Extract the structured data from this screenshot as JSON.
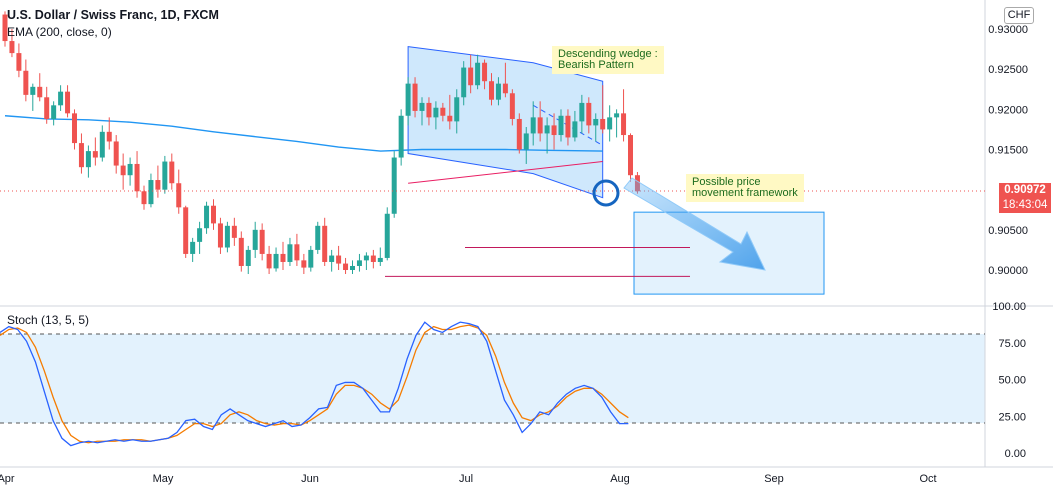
{
  "header": {
    "title": "U.S. Dollar / Swiss Franc, 1D, FXCM",
    "ema_label": "EMA (200, close, 0)",
    "currency_badge": "CHF"
  },
  "price_axis": {
    "ticks": [
      "0.93000",
      "0.92500",
      "0.92000",
      "0.91500",
      "0.90500",
      "0.90000"
    ],
    "current_price": "0.90972",
    "countdown": "18:43:04"
  },
  "stoch_axis": {
    "ticks": [
      "100.00",
      "75.00",
      "50.00",
      "25.00",
      "0.00"
    ],
    "label": "Stoch (13, 5, 5)"
  },
  "time_axis": {
    "ticks": [
      "Apr",
      "May",
      "Jun",
      "Jul",
      "Aug",
      "Sep",
      "Oct"
    ]
  },
  "annotations": {
    "wedge_note": "Descending wedge :\nBearish Pattern",
    "framework_note": "Possible price\nmovement framework"
  },
  "colors": {
    "up": "#26a69a",
    "down": "#ef5350",
    "ema": "#2196f3",
    "stoch_k": "#2962ff",
    "stoch_d": "#f57c00",
    "wedge_fill": "#bbdefb",
    "wedge_edge": "#2962ff",
    "support": "#c2185b"
  },
  "chart_data": {
    "type": "candlestick",
    "symbol": "USDCHF",
    "interval": "1D",
    "y_range": [
      0.8955,
      0.9325
    ],
    "ohlc": [
      [
        0.9318,
        0.9322,
        0.9278,
        0.9285
      ],
      [
        0.9285,
        0.93,
        0.9265,
        0.927
      ],
      [
        0.927,
        0.9282,
        0.924,
        0.9248
      ],
      [
        0.9248,
        0.9262,
        0.921,
        0.9218
      ],
      [
        0.9218,
        0.9232,
        0.9198,
        0.9228
      ],
      [
        0.9228,
        0.9245,
        0.921,
        0.9215
      ],
      [
        0.9215,
        0.9228,
        0.9182,
        0.9188
      ],
      [
        0.9188,
        0.921,
        0.918,
        0.9205
      ],
      [
        0.9205,
        0.923,
        0.9198,
        0.9222
      ],
      [
        0.9222,
        0.923,
        0.919,
        0.9195
      ],
      [
        0.9195,
        0.92,
        0.915,
        0.9158
      ],
      [
        0.9158,
        0.917,
        0.912,
        0.9128
      ],
      [
        0.9128,
        0.9155,
        0.9115,
        0.9148
      ],
      [
        0.9148,
        0.9165,
        0.913,
        0.914
      ],
      [
        0.914,
        0.918,
        0.9135,
        0.9172
      ],
      [
        0.9172,
        0.919,
        0.915,
        0.916
      ],
      [
        0.916,
        0.9168,
        0.912,
        0.913
      ],
      [
        0.913,
        0.9145,
        0.91,
        0.9118
      ],
      [
        0.9118,
        0.914,
        0.9105,
        0.9132
      ],
      [
        0.9132,
        0.9148,
        0.909,
        0.9098
      ],
      [
        0.9098,
        0.9105,
        0.9075,
        0.9082
      ],
      [
        0.9082,
        0.912,
        0.9078,
        0.9112
      ],
      [
        0.9112,
        0.913,
        0.909,
        0.91
      ],
      [
        0.91,
        0.9142,
        0.9095,
        0.9135
      ],
      [
        0.9135,
        0.9145,
        0.91,
        0.9108
      ],
      [
        0.9108,
        0.9125,
        0.907,
        0.9078
      ],
      [
        0.9078,
        0.908,
        0.9015,
        0.902
      ],
      [
        0.902,
        0.904,
        0.901,
        0.9035
      ],
      [
        0.9035,
        0.906,
        0.902,
        0.9052
      ],
      [
        0.9052,
        0.9085,
        0.9045,
        0.908
      ],
      [
        0.908,
        0.9088,
        0.905,
        0.9058
      ],
      [
        0.9058,
        0.9065,
        0.902,
        0.9028
      ],
      [
        0.9028,
        0.906,
        0.9022,
        0.9055
      ],
      [
        0.9055,
        0.9065,
        0.903,
        0.904
      ],
      [
        0.904,
        0.9048,
        0.8998,
        0.9005
      ],
      [
        0.9005,
        0.903,
        0.8995,
        0.9025
      ],
      [
        0.9025,
        0.906,
        0.9015,
        0.905
      ],
      [
        0.905,
        0.9058,
        0.9012,
        0.902
      ],
      [
        0.902,
        0.903,
        0.8995,
        0.9002
      ],
      [
        0.9002,
        0.9028,
        0.8998,
        0.902
      ],
      [
        0.902,
        0.9035,
        0.9,
        0.901
      ],
      [
        0.901,
        0.904,
        0.9005,
        0.9032
      ],
      [
        0.9032,
        0.9045,
        0.9005,
        0.9012
      ],
      [
        0.9012,
        0.902,
        0.8995,
        0.9003
      ],
      [
        0.9003,
        0.903,
        0.8998,
        0.9025
      ],
      [
        0.9025,
        0.906,
        0.902,
        0.9055
      ],
      [
        0.9055,
        0.9065,
        0.9005,
        0.901
      ],
      [
        0.901,
        0.9025,
        0.8998,
        0.9018
      ],
      [
        0.9018,
        0.903,
        0.9,
        0.9008
      ],
      [
        0.9008,
        0.9015,
        0.8995,
        0.9
      ],
      [
        0.9,
        0.9012,
        0.8995,
        0.9005
      ],
      [
        0.9005,
        0.902,
        0.8998,
        0.9012
      ],
      [
        0.9012,
        0.9022,
        0.9,
        0.9018
      ],
      [
        0.9018,
        0.9025,
        0.9002,
        0.901
      ],
      [
        0.901,
        0.9028,
        0.9005,
        0.9015
      ],
      [
        0.9015,
        0.9078,
        0.9012,
        0.907
      ],
      [
        0.907,
        0.9148,
        0.9065,
        0.914
      ],
      [
        0.914,
        0.92,
        0.913,
        0.9192
      ],
      [
        0.9192,
        0.924,
        0.918,
        0.9232
      ],
      [
        0.9232,
        0.924,
        0.919,
        0.9198
      ],
      [
        0.9198,
        0.9215,
        0.918,
        0.9208
      ],
      [
        0.9208,
        0.9215,
        0.918,
        0.919
      ],
      [
        0.919,
        0.921,
        0.9175,
        0.9202
      ],
      [
        0.9202,
        0.9208,
        0.9185,
        0.9192
      ],
      [
        0.9192,
        0.9218,
        0.9175,
        0.9185
      ],
      [
        0.9185,
        0.9225,
        0.917,
        0.9215
      ],
      [
        0.9215,
        0.926,
        0.9205,
        0.9252
      ],
      [
        0.9252,
        0.9268,
        0.922,
        0.923
      ],
      [
        0.923,
        0.9268,
        0.9225,
        0.9258
      ],
      [
        0.9258,
        0.9262,
        0.9225,
        0.9235
      ],
      [
        0.9235,
        0.9245,
        0.9205,
        0.9212
      ],
      [
        0.9212,
        0.924,
        0.9205,
        0.9232
      ],
      [
        0.9232,
        0.9258,
        0.9215,
        0.922
      ],
      [
        0.922,
        0.9225,
        0.918,
        0.9188
      ],
      [
        0.9188,
        0.9195,
        0.9145,
        0.915
      ],
      [
        0.915,
        0.9178,
        0.9132,
        0.917
      ],
      [
        0.917,
        0.921,
        0.9155,
        0.919
      ],
      [
        0.919,
        0.921,
        0.916,
        0.917
      ],
      [
        0.917,
        0.919,
        0.9145,
        0.918
      ],
      [
        0.918,
        0.9195,
        0.915,
        0.9168
      ],
      [
        0.9168,
        0.92,
        0.916,
        0.9192
      ],
      [
        0.9192,
        0.92,
        0.9155,
        0.9165
      ],
      [
        0.9165,
        0.9198,
        0.916,
        0.9185
      ],
      [
        0.9185,
        0.9218,
        0.917,
        0.9208
      ],
      [
        0.9208,
        0.9215,
        0.917,
        0.918
      ],
      [
        0.918,
        0.9195,
        0.916,
        0.9188
      ],
      [
        0.9188,
        0.923,
        0.917,
        0.9175
      ],
      [
        0.9175,
        0.9205,
        0.916,
        0.919
      ],
      [
        0.919,
        0.92,
        0.9165,
        0.9195
      ],
      [
        0.9195,
        0.9225,
        0.916,
        0.9168
      ],
      [
        0.9168,
        0.917,
        0.911,
        0.9118
      ],
      [
        0.9118,
        0.9122,
        0.9095,
        0.9098
      ]
    ],
    "ema_200": [
      [
        0,
        0.9192
      ],
      [
        6,
        0.9188
      ],
      [
        12,
        0.9187
      ],
      [
        18,
        0.9184
      ],
      [
        24,
        0.9179
      ],
      [
        30,
        0.9172
      ],
      [
        36,
        0.9166
      ],
      [
        42,
        0.916
      ],
      [
        48,
        0.9153
      ],
      [
        54,
        0.9148
      ],
      [
        60,
        0.915
      ],
      [
        66,
        0.915
      ],
      [
        72,
        0.915
      ],
      [
        78,
        0.9149
      ],
      [
        86,
        0.9148
      ]
    ],
    "stochastic": {
      "name": "Stoch (13, 5, 5)",
      "y_range": [
        0,
        100
      ],
      "levels": [
        20,
        80
      ],
      "k": [
        82,
        86,
        84,
        76,
        62,
        42,
        22,
        10,
        5,
        7,
        8,
        7,
        8,
        9,
        8,
        9,
        8,
        8,
        9,
        10,
        14,
        22,
        23,
        18,
        16,
        26,
        30,
        26,
        22,
        20,
        18,
        20,
        22,
        18,
        19,
        24,
        30,
        31,
        46,
        48,
        48,
        44,
        36,
        28,
        28,
        44,
        64,
        80,
        89,
        84,
        82,
        86,
        89,
        88,
        86,
        76,
        56,
        36,
        26,
        14,
        20,
        28,
        26,
        34,
        40,
        44,
        46,
        44,
        38,
        28,
        20,
        20
      ],
      "d": [
        80,
        84,
        85,
        82,
        72,
        56,
        38,
        22,
        12,
        8,
        7,
        8,
        8,
        8,
        9,
        9,
        9,
        8,
        9,
        10,
        12,
        16,
        20,
        20,
        18,
        20,
        26,
        28,
        26,
        22,
        20,
        19,
        20,
        20,
        19,
        22,
        26,
        30,
        40,
        46,
        46,
        44,
        40,
        34,
        30,
        36,
        52,
        70,
        82,
        86,
        84,
        84,
        86,
        87,
        85,
        80,
        66,
        48,
        34,
        24,
        22,
        26,
        28,
        32,
        38,
        42,
        44,
        44,
        40,
        34,
        28,
        24
      ],
      "shaded_range": [
        20,
        80
      ]
    },
    "wedge": {
      "upper_line": [
        [
          58,
          0.9278
        ],
        [
          76,
          0.9258
        ],
        [
          86,
          0.9235
        ]
      ],
      "lower_line": [
        [
          58,
          0.9145
        ],
        [
          76,
          0.912
        ],
        [
          86,
          0.909
        ]
      ],
      "midline": [
        [
          76,
          0.9205
        ],
        [
          86,
          0.9155
        ]
      ],
      "ema_cross_line": [
        [
          58,
          0.9108
        ],
        [
          86,
          0.9135
        ]
      ]
    },
    "support_lines": [
      0.9028,
      0.8992
    ],
    "framework_box": {
      "y": [
        0.897,
        0.9072
      ]
    },
    "time_ticks": [
      "Apr",
      "May",
      "Jun",
      "Jul",
      "Aug",
      "Sep",
      "Oct"
    ]
  }
}
